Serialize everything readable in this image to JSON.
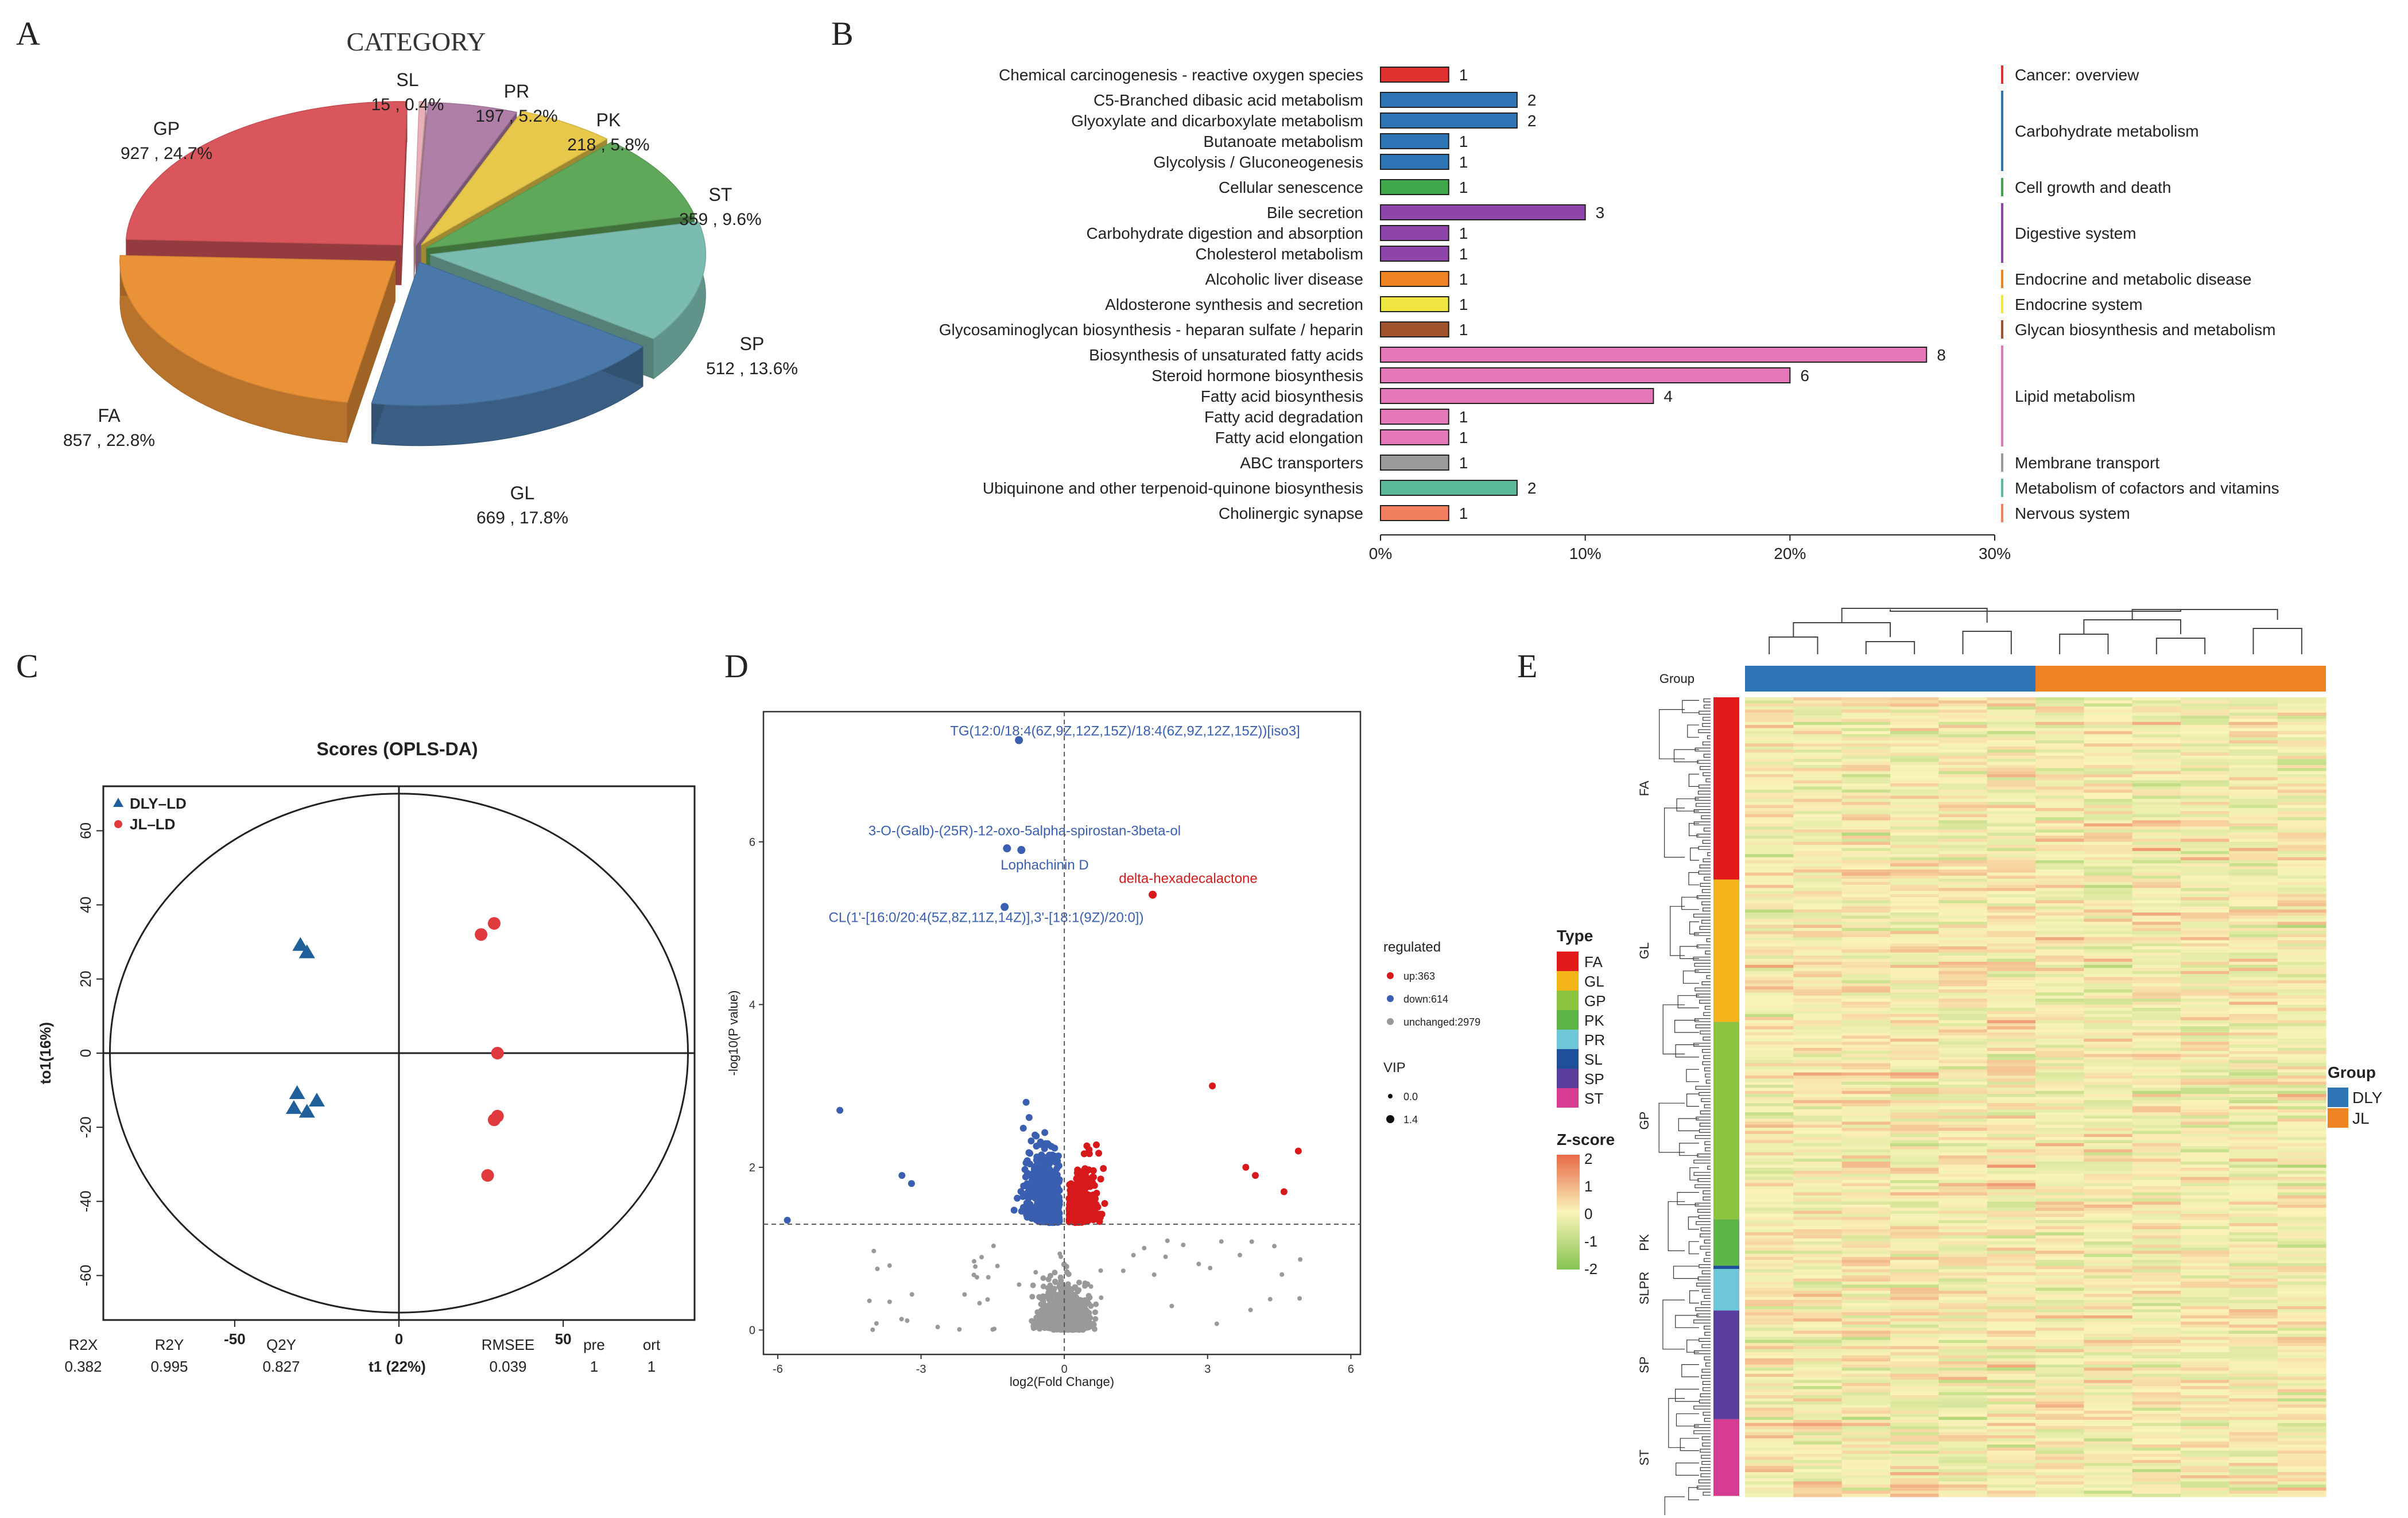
{
  "panels": {
    "A": "A",
    "B": "B",
    "C": "C",
    "D": "D",
    "E": "E"
  },
  "chart_data": [
    {
      "id": "A",
      "type": "pie",
      "title": "CATEGORY",
      "slices": [
        {
          "label": "SL",
          "count": 15,
          "percent": "0.4%",
          "color": "#e8b0b8"
        },
        {
          "label": "PR",
          "count": 197,
          "percent": "5.2%",
          "color": "#b07fa8"
        },
        {
          "label": "PK",
          "count": 218,
          "percent": "5.8%",
          "color": "#e8c84a"
        },
        {
          "label": "ST",
          "count": 359,
          "percent": "9.6%",
          "color": "#5fa85a"
        },
        {
          "label": "SP",
          "count": 512,
          "percent": "13.6%",
          "color": "#7bbcb0"
        },
        {
          "label": "GL",
          "count": 669,
          "percent": "17.8%",
          "color": "#4a78a8"
        },
        {
          "label": "FA",
          "count": 857,
          "percent": "22.8%",
          "color": "#ea9238"
        },
        {
          "label": "GP",
          "count": 927,
          "percent": "24.7%",
          "color": "#d9575c"
        }
      ],
      "value_separator": " ,  "
    },
    {
      "id": "B",
      "type": "bar",
      "orientation": "horizontal",
      "xlim": [
        0,
        30
      ],
      "xticks": [
        "0%",
        "10%",
        "20%",
        "30%"
      ],
      "xtick_values": [
        0,
        10,
        20,
        30
      ],
      "bars": [
        {
          "label": "Chemical carcinogenesis - reactive oxygen species",
          "count": 1,
          "percent": 3.33,
          "category": "Cancer: overview"
        },
        {
          "label": "C5-Branched dibasic acid metabolism",
          "count": 2,
          "percent": 6.67,
          "category": "Carbohydrate metabolism"
        },
        {
          "label": "Glyoxylate and dicarboxylate metabolism",
          "count": 2,
          "percent": 6.67,
          "category": "Carbohydrate metabolism"
        },
        {
          "label": "Butanoate metabolism",
          "count": 1,
          "percent": 3.33,
          "category": "Carbohydrate metabolism"
        },
        {
          "label": "Glycolysis / Gluconeogenesis",
          "count": 1,
          "percent": 3.33,
          "category": "Carbohydrate metabolism"
        },
        {
          "label": "Cellular senescence",
          "count": 1,
          "percent": 3.33,
          "category": "Cell growth and death"
        },
        {
          "label": "Bile secretion",
          "count": 3,
          "percent": 10.0,
          "category": "Digestive system"
        },
        {
          "label": "Carbohydrate digestion and absorption",
          "count": 1,
          "percent": 3.33,
          "category": "Digestive system"
        },
        {
          "label": "Cholesterol metabolism",
          "count": 1,
          "percent": 3.33,
          "category": "Digestive system"
        },
        {
          "label": "Alcoholic liver disease",
          "count": 1,
          "percent": 3.33,
          "category": "Endocrine and metabolic disease"
        },
        {
          "label": "Aldosterone synthesis and secretion",
          "count": 1,
          "percent": 3.33,
          "category": "Endocrine system"
        },
        {
          "label": "Glycosaminoglycan biosynthesis - heparan sulfate / heparin",
          "count": 1,
          "percent": 3.33,
          "category": "Glycan biosynthesis and metabolism"
        },
        {
          "label": "Biosynthesis of unsaturated fatty acids",
          "count": 8,
          "percent": 26.67,
          "category": "Lipid metabolism"
        },
        {
          "label": "Steroid hormone biosynthesis",
          "count": 6,
          "percent": 20.0,
          "category": "Lipid metabolism"
        },
        {
          "label": "Fatty acid biosynthesis",
          "count": 4,
          "percent": 13.33,
          "category": "Lipid metabolism"
        },
        {
          "label": "Fatty acid degradation",
          "count": 1,
          "percent": 3.33,
          "category": "Lipid metabolism"
        },
        {
          "label": "Fatty acid elongation",
          "count": 1,
          "percent": 3.33,
          "category": "Lipid metabolism"
        },
        {
          "label": "ABC transporters",
          "count": 1,
          "percent": 3.33,
          "category": "Membrane transport"
        },
        {
          "label": "Ubiquinone and other terpenoid-quinone biosynthesis",
          "count": 2,
          "percent": 6.67,
          "category": "Metabolism of cofactors and vitamins"
        },
        {
          "label": "Cholinergic synapse",
          "count": 1,
          "percent": 3.33,
          "category": "Nervous system"
        }
      ],
      "categories": [
        {
          "name": "Cancer: overview",
          "color": "#e03030"
        },
        {
          "name": "Carbohydrate metabolism",
          "color": "#2e75b6"
        },
        {
          "name": "Cell growth and death",
          "color": "#3fa64a"
        },
        {
          "name": "Digestive system",
          "color": "#8e44a8"
        },
        {
          "name": "Endocrine and metabolic disease",
          "color": "#ee8322"
        },
        {
          "name": "Endocrine system",
          "color": "#f0e642"
        },
        {
          "name": "Glycan biosynthesis and metabolism",
          "color": "#a0522d"
        },
        {
          "name": "Lipid metabolism",
          "color": "#e377b8"
        },
        {
          "name": "Membrane transport",
          "color": "#9a9a9a"
        },
        {
          "name": "Metabolism of cofactors and vitamins",
          "color": "#5ab99a"
        },
        {
          "name": "Nervous system",
          "color": "#f28060"
        }
      ]
    },
    {
      "id": "C",
      "type": "scatter",
      "title": "Scores (OPLS-DA)",
      "xlabel": "t1 (22%)",
      "ylabel": "to1(16%)",
      "xlim": [
        -90,
        90
      ],
      "ylim": [
        -72,
        72
      ],
      "xticks": [
        -50,
        0,
        50
      ],
      "yticks": [
        60,
        40,
        20,
        0,
        -20,
        -40,
        -60
      ],
      "legend": [
        {
          "name": "DLY–LD",
          "color": "#1f5f9a",
          "marker": "triangle"
        },
        {
          "name": "JL–LD",
          "color": "#e0393e",
          "marker": "circle"
        }
      ],
      "series": [
        {
          "name": "DLY–LD",
          "points": [
            [
              -30,
              29
            ],
            [
              -28,
              27
            ],
            [
              -31,
              -11
            ],
            [
              -28,
              -16
            ],
            [
              -32,
              -15
            ],
            [
              -25,
              -13
            ]
          ]
        },
        {
          "name": "JL–LD",
          "points": [
            [
              25,
              32
            ],
            [
              29,
              35
            ],
            [
              29,
              -18
            ],
            [
              30,
              -17
            ],
            [
              30,
              0
            ],
            [
              27,
              -33
            ]
          ]
        }
      ],
      "stats_headers": [
        "R2X",
        "R2Y",
        "Q2Y",
        "RMSEE",
        "pre",
        "ort"
      ],
      "stats_values": [
        "0.382",
        "0.995",
        "0.827",
        "0.039",
        "1",
        "1"
      ]
    },
    {
      "id": "D",
      "type": "scatter",
      "xlabel": "log2(Fold Change)",
      "ylabel": "-log10(P value)",
      "xlim": [
        -6.3,
        6.2
      ],
      "ylim": [
        -0.3,
        7.6
      ],
      "xticks": [
        -6,
        -3,
        0,
        3,
        6
      ],
      "yticks": [
        0,
        2,
        4,
        6
      ],
      "threshold_y": 1.3,
      "legend_title": "regulated",
      "legend": [
        {
          "name": "up:363",
          "color": "#d7191c"
        },
        {
          "name": "down:614",
          "color": "#3a5fb0"
        },
        {
          "name": "unchanged:2979",
          "color": "#999999"
        }
      ],
      "vip_title": "VIP",
      "vip": [
        "0.0",
        "1.4"
      ],
      "annotations": [
        {
          "text": "TG(12:0/18:4(6Z,9Z,12Z,15Z)/18:4(6Z,9Z,12Z,15Z))[iso3]",
          "x": -0.95,
          "y": 7.25,
          "color": "#3a5fb0"
        },
        {
          "text": "3-O-(Galb)-(25R)-12-oxo-5alpha-spirostan-3beta-ol",
          "x": -1.2,
          "y": 5.92,
          "color": "#3a5fb0"
        },
        {
          "text": "Lophachinin D",
          "x": -0.9,
          "y": 5.9,
          "color": "#3a5fb0"
        },
        {
          "text": "delta-hexadecalactone",
          "x": 1.85,
          "y": 5.35,
          "color": "#d7191c"
        },
        {
          "text": "CL(1'-[16:0/20:4(5Z,8Z,11Z,14Z)],3'-[18:1(9Z)/20:0])",
          "x": -1.25,
          "y": 5.2,
          "color": "#3a5fb0"
        }
      ]
    },
    {
      "id": "E",
      "type": "heatmap",
      "group_label": "Group",
      "type_legend_title": "Type",
      "types": [
        {
          "name": "FA",
          "color": "#e31a1c"
        },
        {
          "name": "GL",
          "color": "#f4b41a"
        },
        {
          "name": "GP",
          "color": "#8cc43f"
        },
        {
          "name": "PK",
          "color": "#5cb545"
        },
        {
          "name": "PR",
          "color": "#6fc8d8"
        },
        {
          "name": "SL",
          "color": "#1f4e9a"
        },
        {
          "name": "SP",
          "color": "#5b3d9e"
        },
        {
          "name": "ST",
          "color": "#d63c92"
        }
      ],
      "row_blocks": [
        {
          "label": "FA",
          "fraction": 0.228
        },
        {
          "label": "GL",
          "fraction": 0.178
        },
        {
          "label": "GP",
          "fraction": 0.247
        },
        {
          "label": "PK",
          "fraction": 0.058
        },
        {
          "label": "SL",
          "fraction": 0.004
        },
        {
          "label": "PR",
          "fraction": 0.052
        },
        {
          "label": "SP",
          "fraction": 0.136
        },
        {
          "label": "ST",
          "fraction": 0.096
        }
      ],
      "side_labels": [
        "FA",
        "GL",
        "GP",
        "PK",
        "SLPR",
        "SP",
        "ST"
      ],
      "zscore_title": "Z-score",
      "zscore_ticks": [
        "2",
        "1",
        "0",
        "-1",
        "-2"
      ],
      "groups": [
        {
          "name": "DLY",
          "color": "#2e75b6",
          "columns": 6
        },
        {
          "name": "JL",
          "color": "#ee8322",
          "columns": 6
        }
      ]
    }
  ]
}
